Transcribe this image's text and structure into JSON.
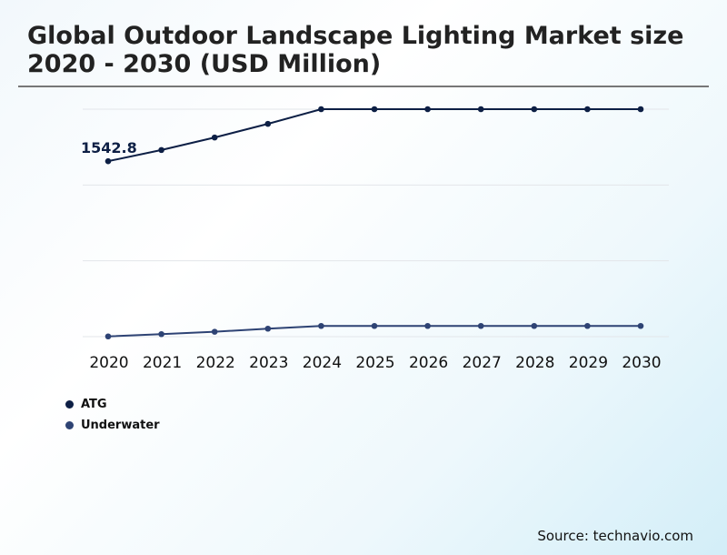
{
  "chart_data": {
    "type": "line",
    "title": "Global Outdoor Landscape Lighting Market size 2020 - 2030 (USD Million)",
    "categories": [
      "2020",
      "2021",
      "2022",
      "2023",
      "2024",
      "2025",
      "2026",
      "2027",
      "2028",
      "2029",
      "2030"
    ],
    "series": [
      {
        "name": "ATG",
        "color": "#0d1f45",
        "values": [
          1542.8,
          1641,
          1751,
          1871,
          2000,
          2000,
          2000,
          2000,
          2000,
          2000,
          2000
        ]
      },
      {
        "name": "Underwater",
        "color": "#2e4374",
        "values": [
          2,
          22,
          43,
          70,
          94,
          94,
          94,
          94,
          94,
          94,
          94
        ]
      }
    ],
    "data_labels": [
      {
        "series": "ATG",
        "category": "2020",
        "text": "1542.8"
      }
    ],
    "ylim": [
      0,
      2000
    ],
    "yticks": [
      0,
      667,
      1333,
      2000
    ],
    "y_axis_labels_shown": false,
    "grid": true,
    "legend": "bottom-left"
  },
  "source": "Source: technavio.com"
}
